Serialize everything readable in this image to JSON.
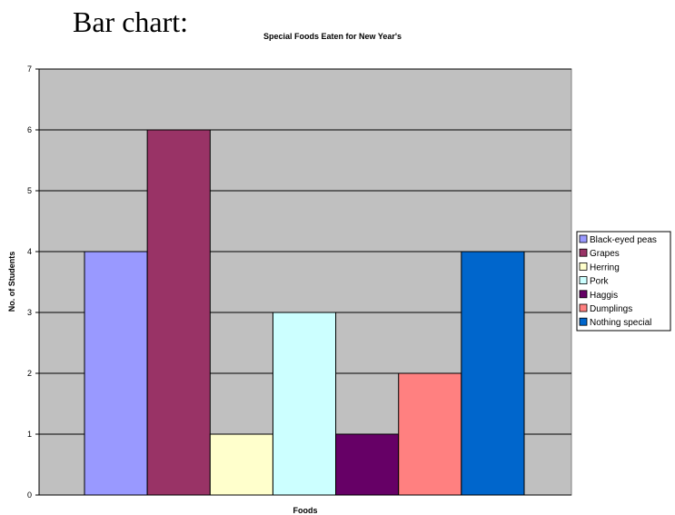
{
  "heading": "Bar chart:",
  "chart_data": {
    "type": "bar",
    "title": "Special Foods Eaten for New Year's",
    "xlabel": "Foods",
    "ylabel": "No. of Students",
    "ylim": [
      0,
      7
    ],
    "yticks": [
      0,
      1,
      2,
      3,
      4,
      5,
      6,
      7
    ],
    "grid": true,
    "legend_position": "right",
    "categories": [
      "Black-eyed peas",
      "Grapes",
      "Herring",
      "Pork",
      "Haggis",
      "Dumplings",
      "Nothing special"
    ],
    "values": [
      4,
      6,
      1,
      3,
      1,
      2,
      4
    ],
    "colors": [
      "#9999ff",
      "#993366",
      "#ffffcc",
      "#ccffff",
      "#660066",
      "#ff8080",
      "#0066cc"
    ],
    "plot_background": "#c0c0c0"
  }
}
